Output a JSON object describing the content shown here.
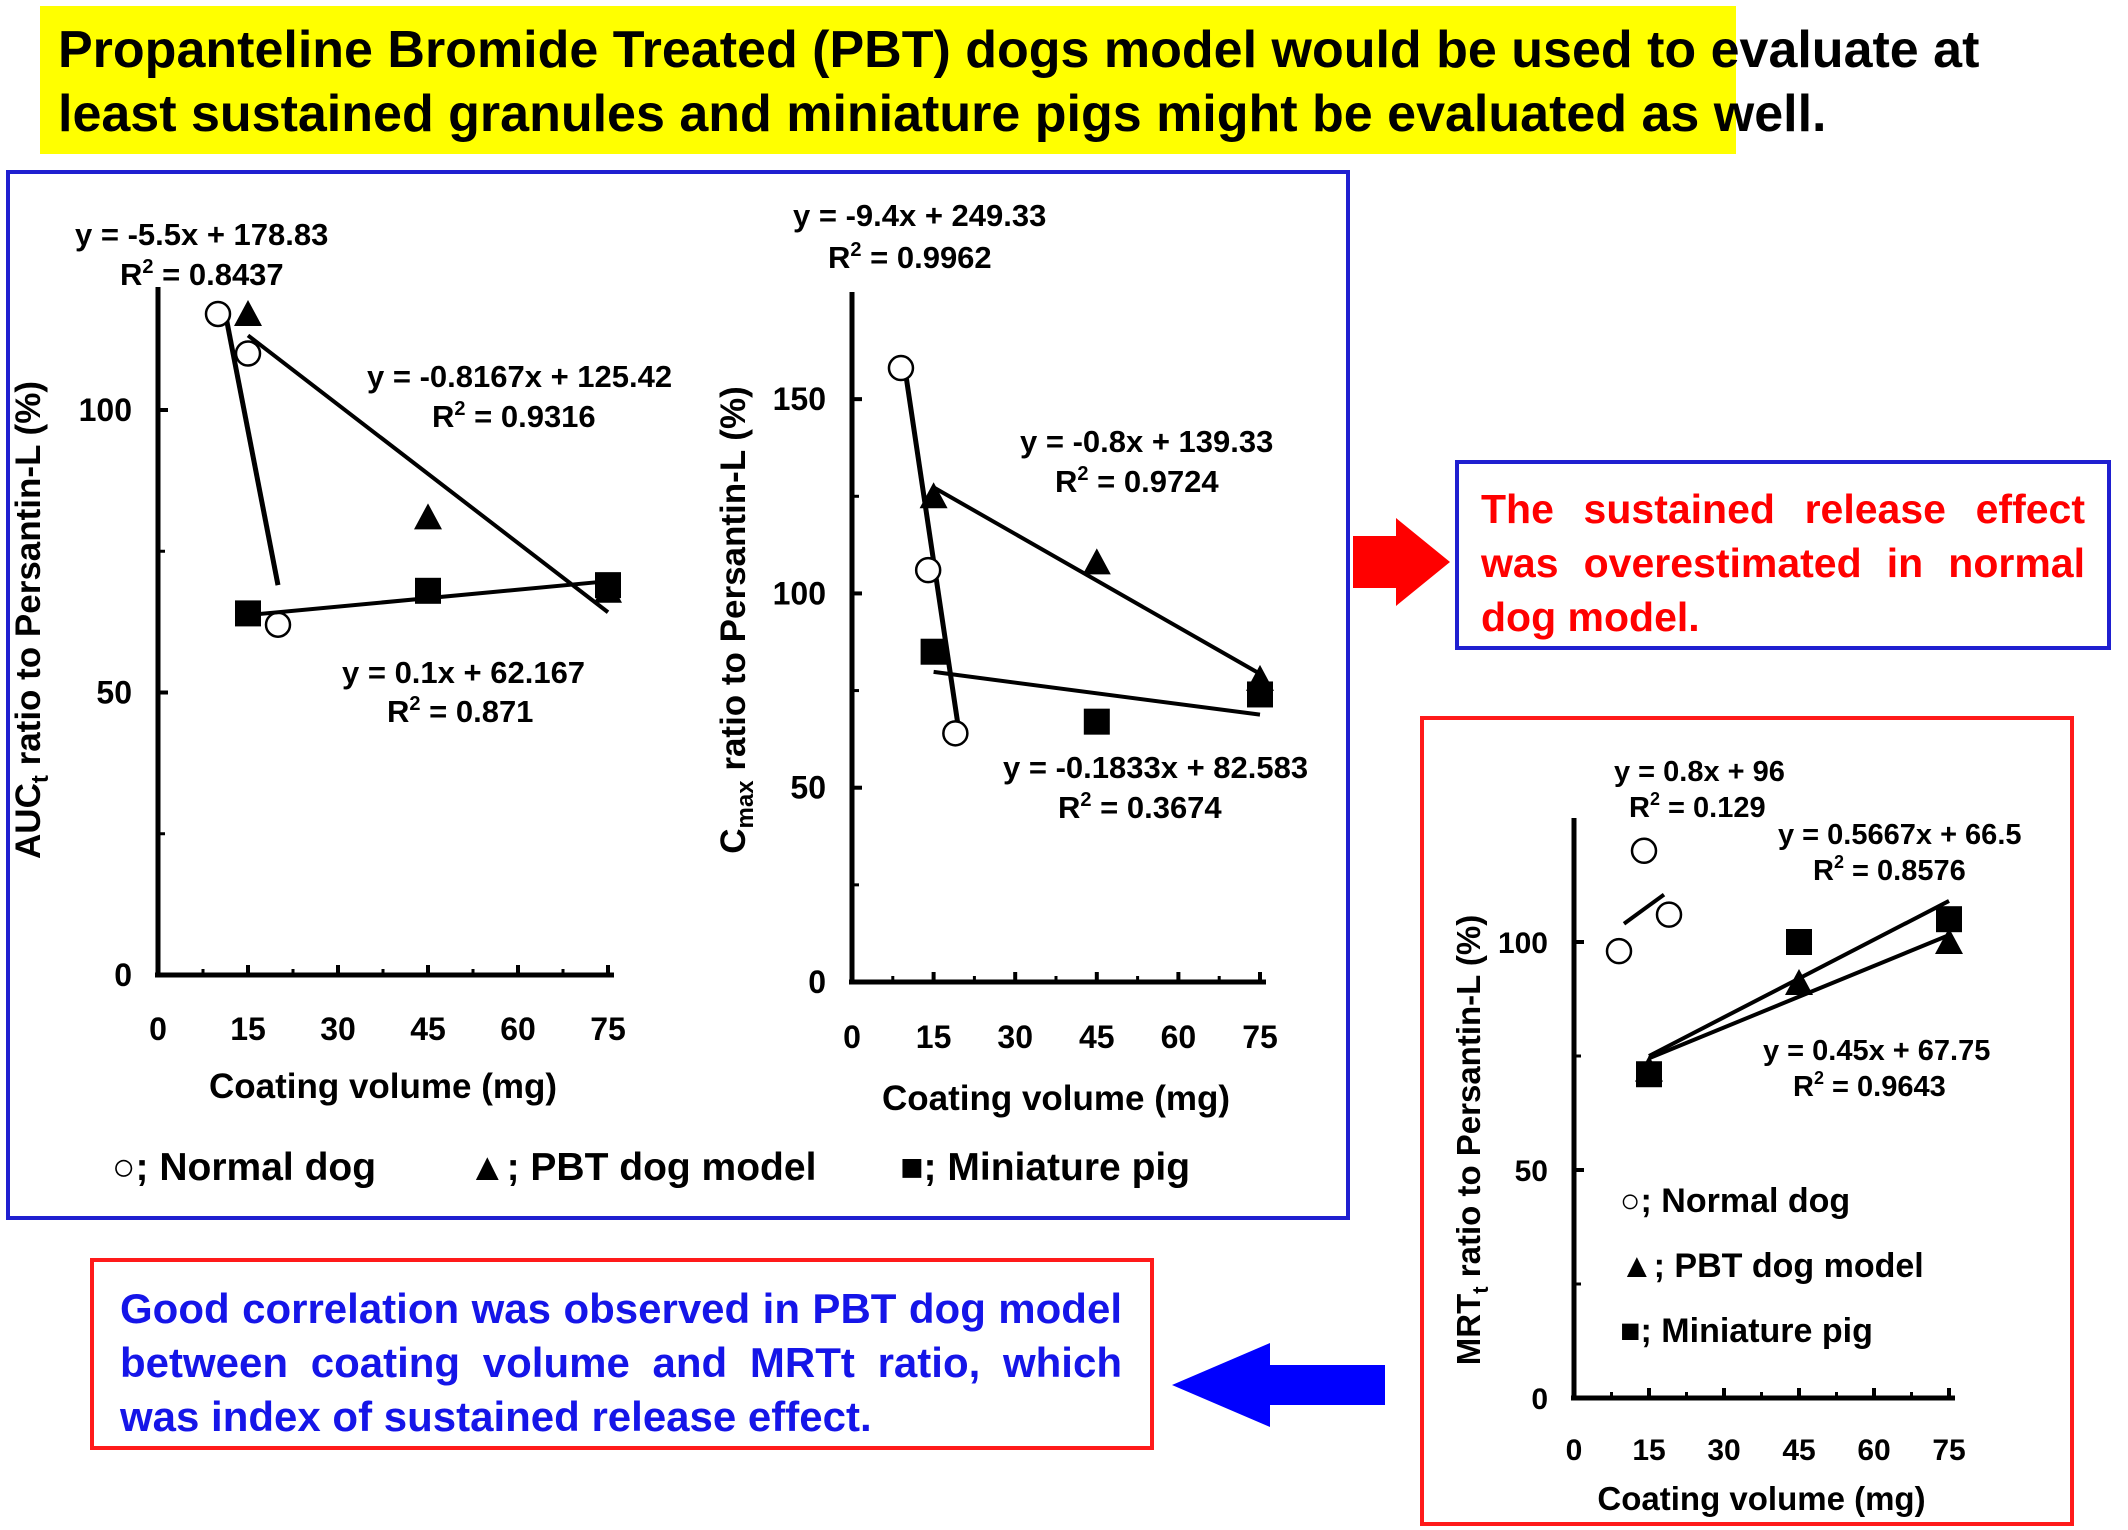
{
  "banner": {
    "line1": "Propanteline Bromide Treated (PBT) dogs model would be used to evaluate at",
    "line2": "least sustained granules and miniature pigs might be evaluated as well."
  },
  "notes": {
    "overestimated": "The sustained release effect was overestimated in normal dog model.",
    "correlation": "Good correlation was observed in PBT dog model between coating volume and MRTt ratio, which was index of sustained release effect."
  },
  "legend": {
    "normal": "○; Normal dog",
    "pbt": "▲; PBT dog model",
    "pig": "■; Miniature pig"
  },
  "colors": {
    "banner": "#ffff00",
    "blue_frame": "#1f1fd0",
    "red_frame": "#ff1a1a",
    "red_text": "#ff0000",
    "blue_text": "#1515e8",
    "red_arrow": "#ff0000",
    "blue_arrow": "#0000ff"
  },
  "arrows": {
    "right": "red-arrow-right",
    "left": "blue-arrow-left"
  },
  "chart_data": [
    {
      "id": "auc",
      "type": "scatter",
      "ylabel_main": "AUC",
      "ylabel_sub": "t",
      "ylabel_rest": " ratio to Persantin-L (%)",
      "xlabel": "Coating volume (mg)",
      "xlim": [
        0,
        75
      ],
      "ylim": [
        0,
        120
      ],
      "xticks": [
        0,
        15,
        30,
        45,
        60,
        75
      ],
      "yticks": [
        0,
        50,
        100
      ],
      "series": [
        {
          "name": "Normal dog",
          "marker": "circle",
          "points": [
            [
              10,
              117
            ],
            [
              15,
              110
            ],
            [
              20,
              62
            ]
          ],
          "fit": {
            "x": [
              11,
              20
            ],
            "y": [
              118.3,
              69
            ],
            "eq": "y = -5.5x + 178.83",
            "r2": "0.8437"
          }
        },
        {
          "name": "PBT dog model",
          "marker": "triangle",
          "points": [
            [
              15,
              117
            ],
            [
              45,
              81
            ],
            [
              75,
              68
            ]
          ],
          "fit": {
            "x": [
              15,
              75
            ],
            "y": [
              113.2,
              64.2
            ],
            "eq": "y = -0.8167x + 125.42",
            "r2": "0.9316"
          }
        },
        {
          "name": "Miniature pig",
          "marker": "square",
          "points": [
            [
              15,
              64
            ],
            [
              45,
              68
            ],
            [
              75,
              69
            ]
          ],
          "fit": {
            "x": [
              15,
              75
            ],
            "y": [
              63.7,
              69.7
            ],
            "eq": "y = 0.1x + 62.167",
            "r2": "0.871"
          }
        }
      ]
    },
    {
      "id": "cmax",
      "type": "scatter",
      "ylabel_main": "C",
      "ylabel_sub": "max",
      "ylabel_rest": " ratio to Persantin-L (%)",
      "xlabel": "Coating volume (mg)",
      "xlim": [
        0,
        75
      ],
      "ylim": [
        0,
        175
      ],
      "xticks": [
        0,
        15,
        30,
        45,
        60,
        75
      ],
      "yticks": [
        0,
        50,
        100,
        150
      ],
      "series": [
        {
          "name": "Normal dog",
          "marker": "circle",
          "points": [
            [
              9,
              158
            ],
            [
              14,
              106
            ],
            [
              19,
              64
            ]
          ],
          "fit": {
            "x": [
              10,
              20
            ],
            "y": [
              155.3,
              61.3
            ],
            "eq": "y = -9.4x + 249.33",
            "r2": "0.9962"
          }
        },
        {
          "name": "PBT dog model",
          "marker": "triangle",
          "points": [
            [
              15,
              125
            ],
            [
              45,
              108
            ],
            [
              75,
              78
            ]
          ],
          "fit": {
            "x": [
              15,
              75
            ],
            "y": [
              127.3,
              79.3
            ],
            "eq": "y = -0.8x + 139.33",
            "r2": "0.9724"
          }
        },
        {
          "name": "Miniature pig",
          "marker": "square",
          "points": [
            [
              15,
              85
            ],
            [
              45,
              67
            ],
            [
              75,
              74
            ]
          ],
          "fit": {
            "x": [
              15,
              75
            ],
            "y": [
              79.8,
              68.8
            ],
            "eq": "y = -0.1833x + 82.583",
            "r2": "0.3674"
          }
        }
      ]
    },
    {
      "id": "mrt",
      "type": "scatter",
      "ylabel_main": "MRT",
      "ylabel_sub": "t",
      "ylabel_rest": " ratio to Persantin-L (%)",
      "xlabel": "Coating volume (mg)",
      "xlim": [
        0,
        75
      ],
      "ylim": [
        0,
        125
      ],
      "xticks": [
        0,
        15,
        30,
        45,
        60,
        75
      ],
      "yticks": [
        0,
        50,
        100
      ],
      "series": [
        {
          "name": "Normal dog",
          "marker": "circle",
          "points": [
            [
              9,
              98
            ],
            [
              14,
              120
            ],
            [
              19,
              106
            ]
          ],
          "fit": {
            "x": [
              10,
              18
            ],
            "y": [
              104,
              110.4
            ],
            "eq": "y = 0.8x + 96",
            "r2": "0.129"
          }
        },
        {
          "name": "PBT dog model",
          "marker": "triangle",
          "points": [
            [
              15,
              72
            ],
            [
              45,
              91
            ],
            [
              75,
              100
            ]
          ],
          "fit": {
            "x": [
              15,
              75
            ],
            "y": [
              74.5,
              101.5
            ],
            "eq": "y = 0.45x + 67.75",
            "r2": "0.9643"
          }
        },
        {
          "name": "Miniature pig",
          "marker": "square",
          "points": [
            [
              15,
              71
            ],
            [
              45,
              100
            ],
            [
              75,
              105
            ]
          ],
          "fit": {
            "x": [
              15,
              75
            ],
            "y": [
              75,
              109
            ],
            "eq": "y = 0.5667x + 66.5",
            "r2": "0.8576"
          }
        }
      ]
    }
  ]
}
